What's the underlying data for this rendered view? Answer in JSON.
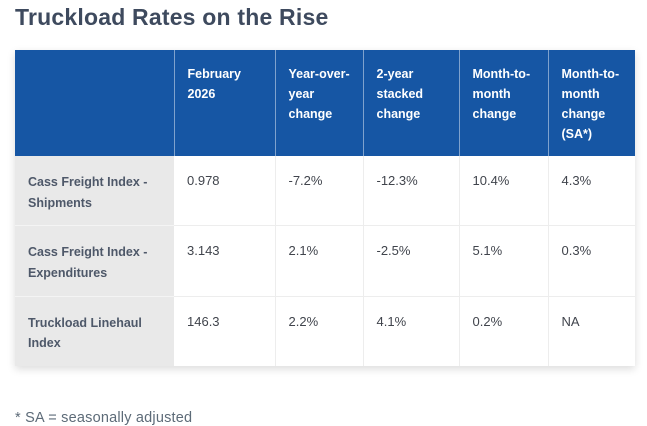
{
  "page": {
    "title": "Truckload Rates on the Rise",
    "footnote": "* SA = seasonally adjusted"
  },
  "colors": {
    "header_bg": "#1656a4",
    "header_text": "#ffffff",
    "label_column_bg": "#e9e9e9",
    "label_text": "#4e5869",
    "cell_text": "#40444c",
    "title_text": "#3e4a5e",
    "footnote_text": "#5d6b78"
  },
  "chart_data": {
    "type": "table",
    "title": "Truckload Rates on the Rise",
    "footnote": "* SA = seasonally adjusted",
    "columns": [
      "",
      "February 2026",
      "Year-over-year change",
      "2-year stacked change",
      "Month-to-month change",
      "Month-to-month change (SA*)"
    ],
    "rows": [
      {
        "label": "Cass Freight Index - Shipments",
        "values": [
          "0.978",
          "-7.2%",
          "-12.3%",
          "10.4%",
          "4.3%"
        ]
      },
      {
        "label": "Cass Freight Index - Expenditures",
        "values": [
          "3.143",
          "2.1%",
          "-2.5%",
          "5.1%",
          "0.3%"
        ]
      },
      {
        "label": "Truckload Linehaul Index",
        "values": [
          "146.3",
          "2.2%",
          "4.1%",
          "0.2%",
          "NA"
        ]
      }
    ]
  }
}
